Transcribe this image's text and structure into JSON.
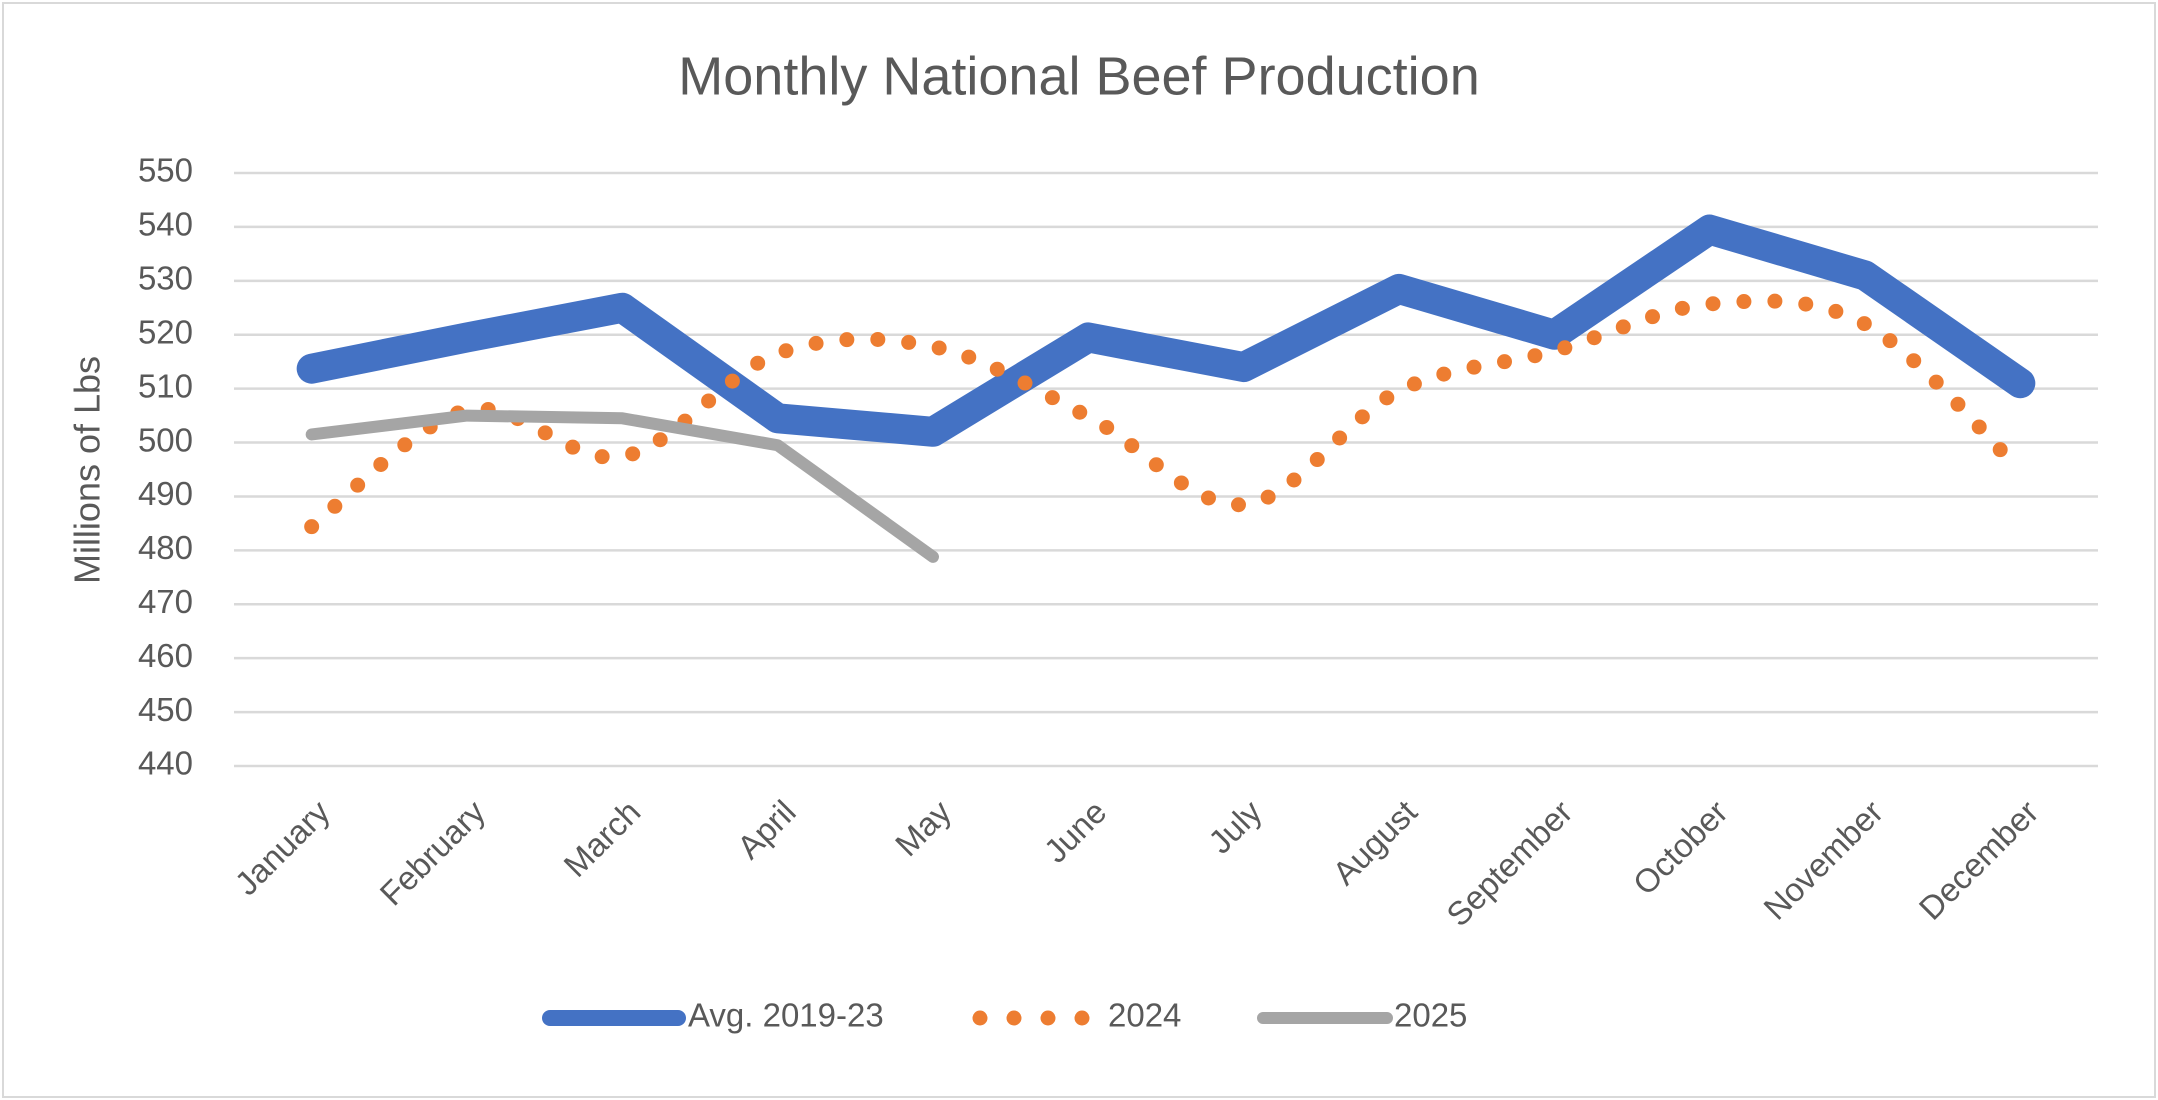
{
  "chart_data": {
    "type": "line",
    "title": "Monthly National Beef Production",
    "y_label": "Millions of Lbs",
    "categories": [
      "January",
      "February",
      "March",
      "April",
      "May",
      "June",
      "July",
      "August",
      "September",
      "October",
      "November",
      "December"
    ],
    "series": [
      {
        "name": "Avg. 2019-23",
        "color": "#4472c4",
        "style": "thick",
        "values": [
          513.7,
          519.5,
          525,
          504.5,
          502,
          519.5,
          514,
          528.5,
          520,
          539.5,
          531,
          511
        ]
      },
      {
        "name": "2024",
        "color": "#ed7d31",
        "style": "dotted-smooth",
        "values": [
          484.4,
          506,
          497.4,
          516.5,
          517.8,
          504.8,
          488.5,
          509.6,
          517,
          525.7,
          522,
          494.8
        ]
      },
      {
        "name": "2025",
        "color": "#a5a5a5",
        "style": "solid",
        "values": [
          501.5,
          505,
          504.5,
          499.5,
          478.8,
          null,
          null,
          null,
          null,
          null,
          null,
          null
        ]
      }
    ],
    "ylim": [
      440,
      550
    ],
    "yticks": [
      440,
      450,
      460,
      470,
      480,
      490,
      500,
      510,
      520,
      530,
      540,
      550
    ],
    "grid": true,
    "legend": "bottom"
  }
}
